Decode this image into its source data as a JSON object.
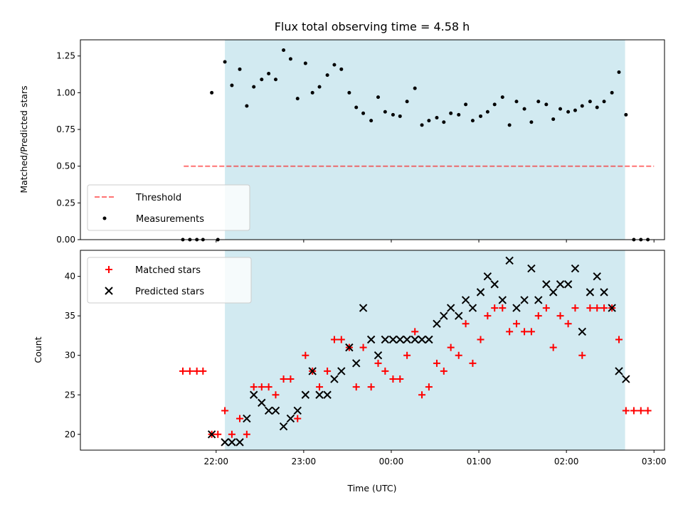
{
  "chart_data": [
    {
      "type": "scatter",
      "title": "Flux total observing time = 4.58 h",
      "ylabel": "Matched/Predicted stars",
      "xlabel": "",
      "x_unit": "hours since 21:00 UTC",
      "xlim": [
        20.45,
        27.12
      ],
      "ylim": [
        0,
        1.36
      ],
      "yticks": [
        0.0,
        0.25,
        0.5,
        0.75,
        1.0,
        1.25
      ],
      "ytick_labels": [
        "0.00",
        "0.25",
        "0.50",
        "0.75",
        "1.00",
        "1.25"
      ],
      "shaded_region": [
        22.1,
        26.67
      ],
      "shade_color": "#add8e6",
      "threshold": {
        "name": "Threshold",
        "value": 0.5,
        "x_range": [
          21.63,
          27.0
        ],
        "color": "#ff0000",
        "style": "dashed"
      },
      "legend": [
        "Threshold",
        "Measurements"
      ],
      "legend_position": "lower left",
      "series": [
        {
          "name": "Measurements",
          "color": "#000000",
          "x": [
            21.62,
            21.7,
            21.78,
            21.85,
            21.95,
            22.02,
            22.1,
            22.18,
            22.27,
            22.35,
            22.43,
            22.52,
            22.6,
            22.68,
            22.77,
            22.85,
            22.93,
            23.02,
            23.1,
            23.18,
            23.27,
            23.35,
            23.43,
            23.52,
            23.6,
            23.68,
            23.77,
            23.85,
            23.93,
            24.02,
            24.1,
            24.18,
            24.27,
            24.35,
            24.43,
            24.52,
            24.6,
            24.68,
            24.77,
            24.85,
            24.93,
            25.02,
            25.1,
            25.18,
            25.27,
            25.35,
            25.43,
            25.52,
            25.6,
            25.68,
            25.77,
            25.85,
            25.93,
            26.02,
            26.1,
            26.18,
            26.27,
            26.35,
            26.43,
            26.52,
            26.6,
            26.68,
            26.77,
            26.85,
            26.93
          ],
          "y": [
            0,
            0,
            0,
            0,
            1.0,
            0,
            1.21,
            1.05,
            1.16,
            0.91,
            1.04,
            1.09,
            1.13,
            1.09,
            1.29,
            1.23,
            0.96,
            1.2,
            1.0,
            1.04,
            1.12,
            1.19,
            1.16,
            1.0,
            0.9,
            0.86,
            0.81,
            0.97,
            0.87,
            0.85,
            0.84,
            0.94,
            1.03,
            0.78,
            0.81,
            0.83,
            0.8,
            0.86,
            0.85,
            0.92,
            0.81,
            0.84,
            0.87,
            0.92,
            0.97,
            0.78,
            0.94,
            0.89,
            0.8,
            0.94,
            0.92,
            0.82,
            0.89,
            0.87,
            0.88,
            0.91,
            0.94,
            0.9,
            0.94,
            1.0,
            1.14,
            0.85,
            0,
            0,
            0
          ]
        }
      ]
    },
    {
      "type": "scatter",
      "title": "",
      "ylabel": "Count",
      "xlabel": "Time (UTC)",
      "x_unit": "hours since 21:00 UTC",
      "xlim": [
        20.45,
        27.12
      ],
      "ylim": [
        18,
        43.3
      ],
      "yticks": [
        20,
        25,
        30,
        35,
        40
      ],
      "ytick_labels": [
        "20",
        "25",
        "30",
        "35",
        "40"
      ],
      "xticks": [
        22,
        23,
        24,
        25,
        26,
        27
      ],
      "xtick_labels": [
        "22:00",
        "23:00",
        "00:00",
        "01:00",
        "02:00",
        "03:00"
      ],
      "shaded_region": [
        22.1,
        26.67
      ],
      "shade_color": "#add8e6",
      "legend": [
        "Matched stars",
        "Predicted stars"
      ],
      "legend_position": "upper left",
      "series": [
        {
          "name": "Matched stars",
          "marker": "+",
          "color": "#ff0000",
          "x": [
            21.62,
            21.7,
            21.78,
            21.85,
            21.95,
            22.02,
            22.1,
            22.18,
            22.27,
            22.35,
            22.43,
            22.52,
            22.6,
            22.68,
            22.77,
            22.85,
            22.93,
            23.02,
            23.1,
            23.18,
            23.27,
            23.35,
            23.43,
            23.52,
            23.6,
            23.68,
            23.77,
            23.85,
            23.93,
            24.02,
            24.1,
            24.18,
            24.27,
            24.35,
            24.43,
            24.52,
            24.6,
            24.68,
            24.77,
            24.85,
            24.93,
            25.02,
            25.1,
            25.18,
            25.27,
            25.35,
            25.43,
            25.52,
            25.6,
            25.68,
            25.77,
            25.85,
            25.93,
            26.02,
            26.1,
            26.18,
            26.27,
            26.35,
            26.43,
            26.52,
            26.6,
            26.68,
            26.77,
            26.85,
            26.93
          ],
          "y": [
            28,
            28,
            28,
            28,
            20,
            20,
            23,
            20,
            22,
            20,
            26,
            26,
            26,
            25,
            27,
            27,
            22,
            30,
            28,
            26,
            28,
            32,
            32,
            31,
            26,
            31,
            26,
            29,
            28,
            27,
            27,
            30,
            33,
            25,
            26,
            29,
            28,
            31,
            30,
            34,
            29,
            32,
            35,
            36,
            36,
            33,
            34,
            33,
            33,
            35,
            36,
            31,
            35,
            34,
            36,
            30,
            36,
            36,
            36,
            36,
            32,
            23,
            23,
            23,
            23
          ]
        },
        {
          "name": "Predicted stars",
          "marker": "x",
          "color": "#000000",
          "x": [
            21.95,
            22.1,
            22.18,
            22.27,
            22.35,
            22.43,
            22.52,
            22.6,
            22.68,
            22.77,
            22.85,
            22.93,
            23.02,
            23.1,
            23.18,
            23.27,
            23.35,
            23.43,
            23.52,
            23.6,
            23.68,
            23.77,
            23.85,
            23.93,
            24.02,
            24.1,
            24.18,
            24.27,
            24.35,
            24.43,
            24.52,
            24.6,
            24.68,
            24.77,
            24.85,
            24.93,
            25.02,
            25.1,
            25.18,
            25.27,
            25.35,
            25.43,
            25.52,
            25.6,
            25.68,
            25.77,
            25.85,
            25.93,
            26.02,
            26.1,
            26.18,
            26.27,
            26.35,
            26.43,
            26.52,
            26.6,
            26.68
          ],
          "y": [
            20,
            19,
            19,
            19,
            22,
            25,
            24,
            23,
            23,
            21,
            22,
            23,
            25,
            28,
            25,
            25,
            27,
            28,
            31,
            29,
            36,
            32,
            30,
            32,
            32,
            32,
            32,
            32,
            32,
            32,
            34,
            35,
            36,
            35,
            37,
            36,
            38,
            40,
            39,
            37,
            42,
            36,
            37,
            41,
            37,
            39,
            38,
            39,
            39,
            41,
            33,
            38,
            40,
            38,
            36,
            28,
            27
          ]
        }
      ]
    }
  ]
}
